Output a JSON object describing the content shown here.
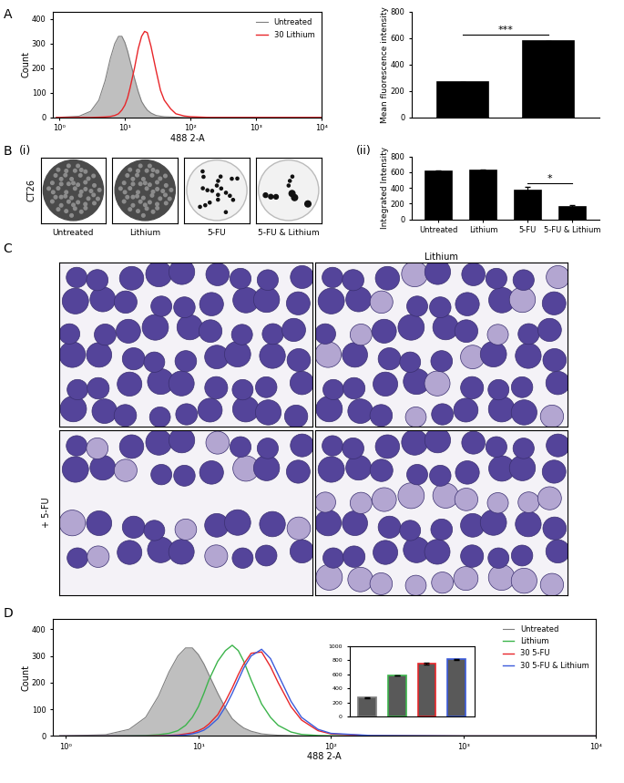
{
  "chart_data": [
    {
      "panel_label": "A",
      "type": "line",
      "x_label": "488 2-A",
      "y_label": "Count",
      "x": [
        0.9,
        2,
        3,
        4,
        5,
        6,
        7,
        8,
        9,
        10,
        11,
        12,
        14,
        16,
        18,
        20,
        22,
        25,
        30,
        35,
        40,
        50,
        60,
        80,
        100,
        200,
        1000,
        10000
      ],
      "series": [
        {
          "name": "Untreated",
          "color": "#bfbfbf",
          "type": "area",
          "values": [
            0,
            5,
            25,
            70,
            150,
            240,
            300,
            330,
            330,
            305,
            270,
            230,
            160,
            105,
            65,
            45,
            30,
            18,
            8,
            5,
            3,
            2,
            1,
            0,
            0,
            0,
            0,
            0
          ]
        },
        {
          "name": "30 Lithium",
          "color": "#e8262a",
          "type": "line",
          "values": [
            0,
            0,
            0,
            1,
            2,
            4,
            8,
            15,
            30,
            50,
            80,
            120,
            200,
            280,
            330,
            350,
            345,
            290,
            190,
            110,
            70,
            35,
            15,
            6,
            3,
            0,
            0,
            0
          ]
        }
      ],
      "log": "x",
      "xlim": [
        0.8,
        10000
      ],
      "xticks": [
        {
          "value": 1,
          "label": "10⁰"
        },
        {
          "value": 10,
          "label": "10¹"
        },
        {
          "value": 100,
          "label": "10²"
        },
        {
          "value": 1000,
          "label": "10³"
        },
        {
          "value": 10000,
          "label": "10⁴"
        }
      ],
      "ylim": [
        0,
        430
      ],
      "yticks": [
        0,
        100,
        200,
        300,
        400
      ],
      "legend": "upper right"
    },
    {
      "type": "bar",
      "y_label": "Mean fluorescence intensity",
      "categories": [
        null,
        null
      ],
      "values": [
        265,
        578
      ],
      "errors": [
        5,
        3
      ],
      "color": "#000000",
      "ylim": [
        0,
        800
      ],
      "yticks": [
        0,
        200,
        400,
        600,
        800
      ],
      "annotations": [
        {
          "text": "***",
          "between": [
            0,
            1
          ]
        }
      ]
    },
    {
      "panel_label": "(ii)",
      "type": "bar",
      "y_label": "Integrated Intensity",
      "categories": [
        "Untreated",
        "Lithium",
        "5-FU",
        "5-FU & Lithium"
      ],
      "values": [
        607,
        623,
        370,
        163
      ],
      "errors": [
        12,
        15,
        45,
        15
      ],
      "color": "#000000",
      "ylim": [
        0,
        800
      ],
      "yticks": [
        0,
        200,
        400,
        600,
        800
      ],
      "annotations": [
        {
          "text": "*",
          "between": [
            2,
            3
          ]
        }
      ]
    },
    {
      "panel_label": "D",
      "type": "line",
      "x_label": "488 2-A",
      "y_label": "Count",
      "x": [
        0.9,
        2,
        3,
        4,
        5,
        6,
        7,
        8,
        9,
        10,
        11,
        12,
        14,
        16,
        18,
        20,
        22,
        25,
        30,
        35,
        40,
        50,
        60,
        80,
        100,
        200,
        1000,
        10000
      ],
      "series": [
        {
          "name": "Untreated",
          "color": "#bfbfbf",
          "type": "area",
          "values": [
            0,
            5,
            25,
            70,
            150,
            240,
            300,
            330,
            330,
            305,
            270,
            230,
            160,
            105,
            65,
            45,
            30,
            18,
            8,
            5,
            3,
            2,
            1,
            0,
            0,
            0,
            0,
            0
          ]
        },
        {
          "name": "Lithium",
          "color": "#3cb44b",
          "type": "line",
          "values": [
            0,
            0,
            1,
            2,
            5,
            10,
            20,
            40,
            70,
            110,
            160,
            210,
            280,
            320,
            340,
            320,
            280,
            210,
            120,
            70,
            40,
            15,
            6,
            2,
            1,
            0,
            0,
            0
          ]
        },
        {
          "name": "30 5-FU",
          "color": "#e8262a",
          "type": "line",
          "values": [
            0,
            0,
            0,
            0,
            1,
            2,
            4,
            8,
            12,
            20,
            30,
            45,
            80,
            130,
            180,
            230,
            270,
            310,
            315,
            260,
            200,
            110,
            60,
            20,
            8,
            1,
            0,
            0
          ]
        },
        {
          "name": "30 5-FU & Lithium",
          "color": "#3b5bdb",
          "type": "line",
          "values": [
            0,
            0,
            0,
            0,
            0,
            1,
            2,
            4,
            8,
            14,
            22,
            35,
            65,
            110,
            160,
            210,
            255,
            300,
            325,
            290,
            230,
            130,
            70,
            25,
            10,
            2,
            0,
            0
          ]
        }
      ],
      "log": "x",
      "xlim": [
        0.8,
        10000
      ],
      "xticks": [
        {
          "value": 1,
          "label": "10⁰"
        },
        {
          "value": 10,
          "label": "10¹"
        },
        {
          "value": 100,
          "label": "10²"
        },
        {
          "value": 1000,
          "label": "10³"
        },
        {
          "value": 10000,
          "label": "10⁴"
        }
      ],
      "ylim": [
        0,
        440
      ],
      "yticks": [
        0,
        100,
        200,
        300,
        400
      ],
      "legend": "upper right"
    },
    {
      "type": "bar",
      "categories": [
        null,
        null,
        null,
        null
      ],
      "values": [
        265,
        580,
        750,
        810
      ],
      "errors": [
        5,
        3,
        12,
        4
      ],
      "color": "#595959",
      "colors": [
        "#7f7f7f",
        "#3cb44b",
        "#e8262a",
        "#3b5bdb"
      ],
      "ylim": [
        0,
        1000
      ],
      "yticks": [
        0,
        200,
        400,
        600,
        800,
        1000
      ]
    }
  ],
  "images": {
    "B": {
      "panel_label": "B",
      "sub_label": "(i)",
      "row_label": "CT26",
      "labels": [
        "Untreated",
        "Lithium",
        "5-FU",
        "5-FU & Lithium"
      ]
    },
    "C": {
      "panel_label": "C",
      "column_title": "Lithium",
      "row_label": "+ 5-FU"
    }
  }
}
